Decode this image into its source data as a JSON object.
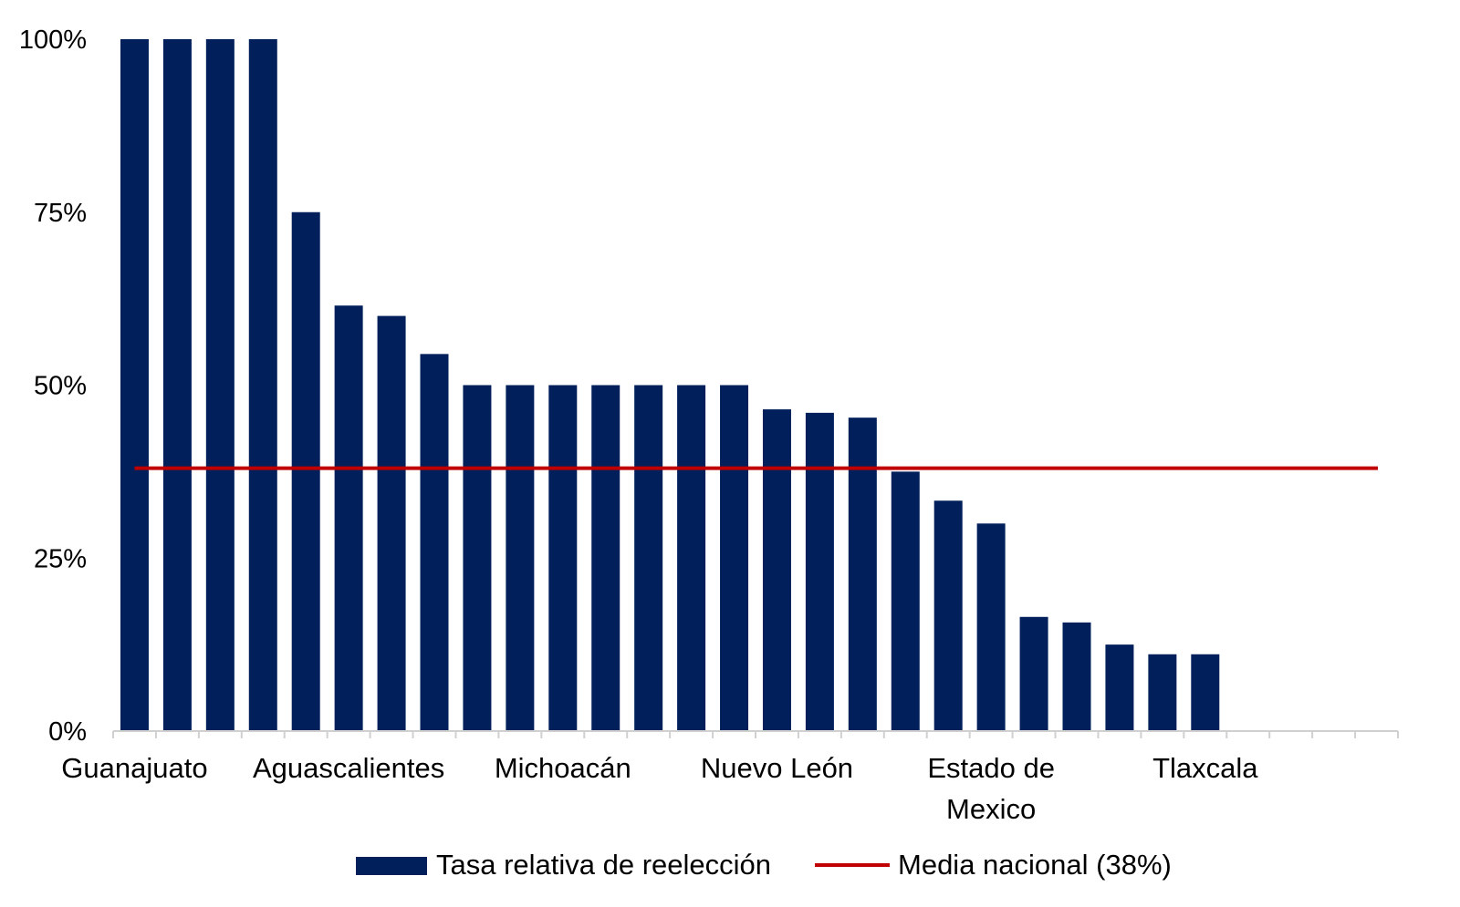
{
  "chart_data": {
    "type": "bar",
    "title": "",
    "xlabel": "",
    "ylabel": "",
    "ylim": [
      0,
      100
    ],
    "yticks": [
      "0%",
      "25%",
      "50%",
      "75%",
      "100%"
    ],
    "ytick_values": [
      0,
      25,
      50,
      75,
      100
    ],
    "grid": false,
    "legend_position": "bottom",
    "categories": [
      "Guanajuato",
      "",
      "",
      "",
      "",
      "Aguascalientes",
      "",
      "",
      "",
      "",
      "Michoacán",
      "",
      "",
      "",
      "",
      "Nuevo León",
      "",
      "",
      "",
      "",
      "Estado de\nMexico",
      "",
      "",
      "",
      "",
      "Tlaxcala",
      "",
      "",
      "",
      ""
    ],
    "series": [
      {
        "name": "Tasa relativa de reelección",
        "color": "#001f5b",
        "values": [
          100,
          100,
          100,
          100,
          75,
          61.5,
          60,
          54.5,
          50,
          50,
          50,
          50,
          50,
          50,
          50,
          46.5,
          46,
          45.3,
          37.5,
          33.3,
          30,
          16.5,
          15.7,
          12.5,
          11.1,
          11.1,
          null,
          null,
          null,
          null
        ]
      }
    ],
    "reference_line": {
      "name": "Media nacional (38%)",
      "value": 38,
      "color": "#c00000"
    }
  }
}
